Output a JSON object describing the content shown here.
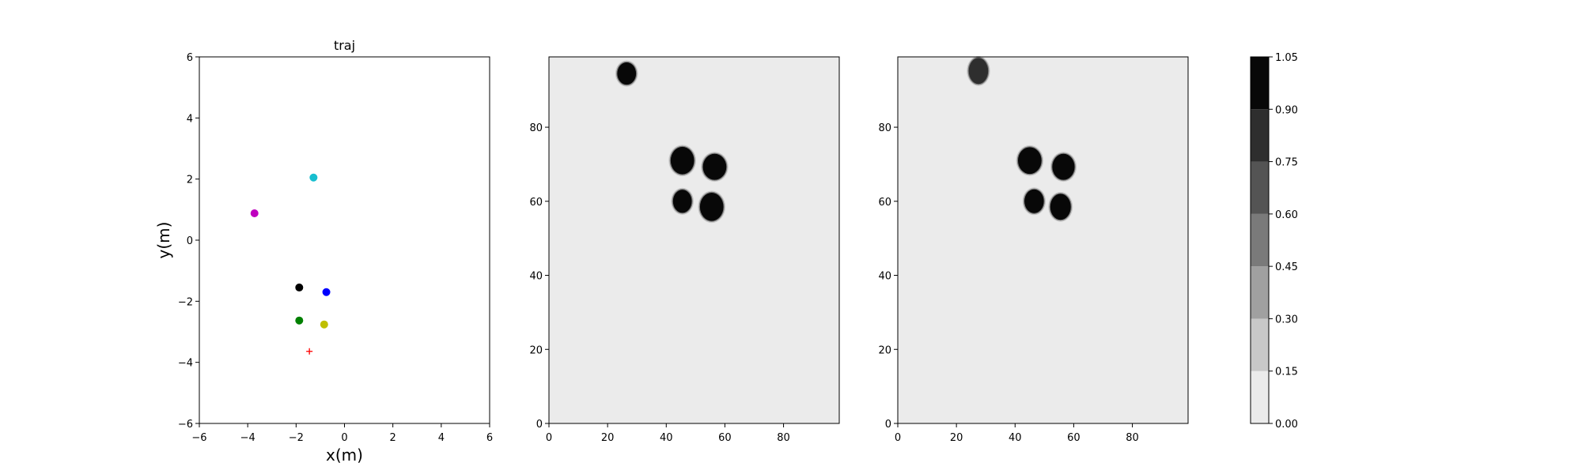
{
  "chart_data": [
    {
      "id": "traj",
      "type": "scatter",
      "title": "traj",
      "xlabel": "x(m)",
      "ylabel": "y(m)",
      "xlim": [
        -6,
        6
      ],
      "ylim": [
        -6,
        6
      ],
      "xticks": [
        "−6",
        "−4",
        "−2",
        "0",
        "2",
        "4",
        "6"
      ],
      "yticks": [
        "−6",
        "−4",
        "−2",
        "0",
        "2",
        "4",
        "6"
      ],
      "grid": false,
      "points": [
        {
          "x": -1.28,
          "y": 2.05,
          "color": "#17becf",
          "marker": "circle"
        },
        {
          "x": -3.72,
          "y": 0.88,
          "color": "#bf00bf",
          "marker": "circle"
        },
        {
          "x": -1.87,
          "y": -1.55,
          "color": "#000000",
          "marker": "circle"
        },
        {
          "x": -0.75,
          "y": -1.7,
          "color": "#0000ff",
          "marker": "circle"
        },
        {
          "x": -1.87,
          "y": -2.63,
          "color": "#008000",
          "marker": "circle"
        },
        {
          "x": -0.84,
          "y": -2.76,
          "color": "#bfbf00",
          "marker": "circle"
        },
        {
          "x": -1.45,
          "y": -3.64,
          "color": "#ff0000",
          "marker": "plus"
        }
      ]
    },
    {
      "id": "map1",
      "type": "heatmap",
      "title": "",
      "xlim": [
        0,
        99
      ],
      "ylim": [
        0,
        99
      ],
      "xticks": [
        "0",
        "20",
        "40",
        "60",
        "80"
      ],
      "yticks": [
        "0",
        "20",
        "40",
        "60",
        "80"
      ],
      "background_value": 0.05,
      "blobs": [
        {
          "cx": 26.5,
          "cy": 94.5,
          "rx": 3.2,
          "ry": 3.0,
          "value": 1.0
        },
        {
          "cx": 45.5,
          "cy": 71.0,
          "rx": 4.0,
          "ry": 3.7,
          "value": 1.0
        },
        {
          "cx": 56.5,
          "cy": 69.3,
          "rx": 4.0,
          "ry": 3.5,
          "value": 1.0
        },
        {
          "cx": 45.5,
          "cy": 60.0,
          "rx": 3.2,
          "ry": 3.1,
          "value": 1.0
        },
        {
          "cx": 55.5,
          "cy": 58.5,
          "rx": 4.0,
          "ry": 3.8,
          "value": 1.0
        }
      ]
    },
    {
      "id": "map2",
      "type": "heatmap",
      "title": "",
      "xlim": [
        0,
        99
      ],
      "ylim": [
        0,
        99
      ],
      "xticks": [
        "0",
        "20",
        "40",
        "60",
        "80"
      ],
      "yticks": [
        "0",
        "20",
        "40",
        "60",
        "80"
      ],
      "background_value": 0.05,
      "blobs": [
        {
          "cx": 27.5,
          "cy": 95.2,
          "rx": 3.3,
          "ry": 3.5,
          "value": 0.85
        },
        {
          "cx": 45.0,
          "cy": 71.0,
          "rx": 4.0,
          "ry": 3.6,
          "value": 1.0
        },
        {
          "cx": 56.5,
          "cy": 69.3,
          "rx": 3.8,
          "ry": 3.5,
          "value": 1.0
        },
        {
          "cx": 46.5,
          "cy": 60.0,
          "rx": 3.3,
          "ry": 3.2,
          "value": 1.0
        },
        {
          "cx": 55.5,
          "cy": 58.5,
          "rx": 3.5,
          "ry": 3.5,
          "value": 1.0
        }
      ]
    }
  ],
  "colorbar": {
    "levels": [
      0.0,
      0.15,
      0.3,
      0.45,
      0.6,
      0.75,
      0.9,
      1.05
    ],
    "tick_labels": [
      "0.00",
      "0.15",
      "0.30",
      "0.45",
      "0.60",
      "0.75",
      "0.90",
      "1.05"
    ],
    "colors": [
      "#ebebeb",
      "#c8c8c8",
      "#a0a0a0",
      "#7a7a7a",
      "#545454",
      "#2e2e2e",
      "#080808"
    ]
  }
}
